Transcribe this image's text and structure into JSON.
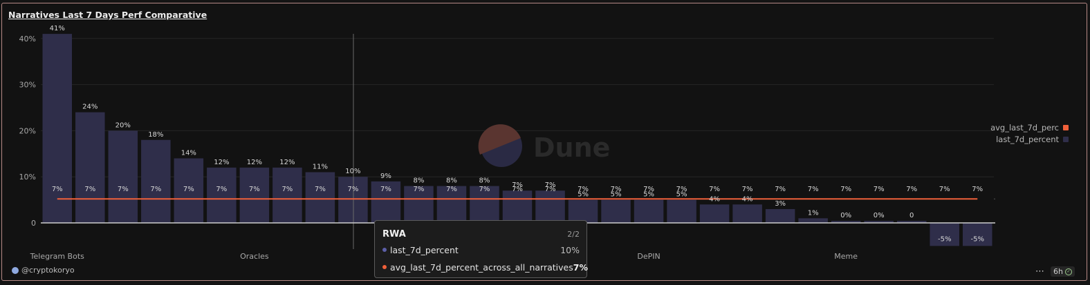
{
  "title": "Narratives Last 7 Days Perf Comparative",
  "colors": {
    "background": "#121212",
    "border": "#b78a86",
    "bar": "#2f2e4a",
    "avg_line": "#f0603a",
    "last_7d_swatch": "#2f2e4a",
    "avg_swatch": "#f0603a"
  },
  "chart_data": {
    "type": "bar",
    "title": "Narratives Last 7 Days Perf Comparative",
    "ylim": [
      -5.5,
      43
    ],
    "yticks": [
      {
        "value": 0,
        "label": "0"
      },
      {
        "value": 10,
        "label": "10%"
      },
      {
        "value": 20,
        "label": "20%"
      },
      {
        "value": 30,
        "label": "30%"
      },
      {
        "value": 40,
        "label": "40%"
      }
    ],
    "grid": true,
    "legend_position": "right",
    "x_tick_labels": [
      {
        "index": 0,
        "label": "Telegram Bots"
      },
      {
        "index": 6,
        "label": "Oracles"
      },
      {
        "index": 18,
        "label": "DePIN"
      },
      {
        "index": 24,
        "label": "Meme"
      }
    ],
    "categories": [
      "Telegram Bots",
      "",
      "",
      "",
      "",
      "",
      "Oracles",
      "",
      "",
      "RWA",
      "",
      "",
      "",
      "",
      "",
      "",
      "",
      "",
      "DePIN",
      "",
      "",
      "",
      "",
      "",
      "Meme",
      "",
      "",
      "",
      ""
    ],
    "series": [
      {
        "name": "last_7d_percent",
        "type": "bar",
        "color": "#2f2e4a",
        "values": [
          41,
          24,
          20,
          18,
          14,
          12,
          12,
          12,
          11,
          10,
          9,
          8,
          8,
          8,
          7,
          7,
          5,
          5,
          5,
          5,
          4,
          4,
          3,
          1,
          0,
          0,
          0,
          -5,
          -5
        ],
        "labels": [
          "41%",
          "24%",
          "20%",
          "18%",
          "14%",
          "12%",
          "12%",
          "12%",
          "11%",
          "10%",
          "9%",
          "8%",
          "8%",
          "8%",
          "7%",
          "7%",
          "5%",
          "5%",
          "5%",
          "5%",
          "4%",
          "4%",
          "3%",
          "1%",
          "0%",
          "0%",
          "0",
          "-5%",
          "-5%"
        ]
      },
      {
        "name": "avg_last_7d_percent_across_all_narratives",
        "type": "line",
        "color": "#f0603a",
        "value": 7,
        "label": "7%"
      }
    ]
  },
  "legend": [
    {
      "label": "avg_last_7d_perc",
      "color": "#f0603a"
    },
    {
      "label": "last_7d_percent",
      "color": "#2f2e4a"
    }
  ],
  "watermark": "Dune",
  "tooltip": {
    "title": "RWA",
    "count": "2/2",
    "rows": [
      {
        "label": "last_7d_percent",
        "value": "10%",
        "color": "#5c5fa8"
      },
      {
        "label": "avg_last_7d_percent_across_all_narratives",
        "value": "7%",
        "color": "#f0603a"
      }
    ]
  },
  "footer": {
    "author": "@cryptokoryo",
    "refresh_age": "6h"
  }
}
